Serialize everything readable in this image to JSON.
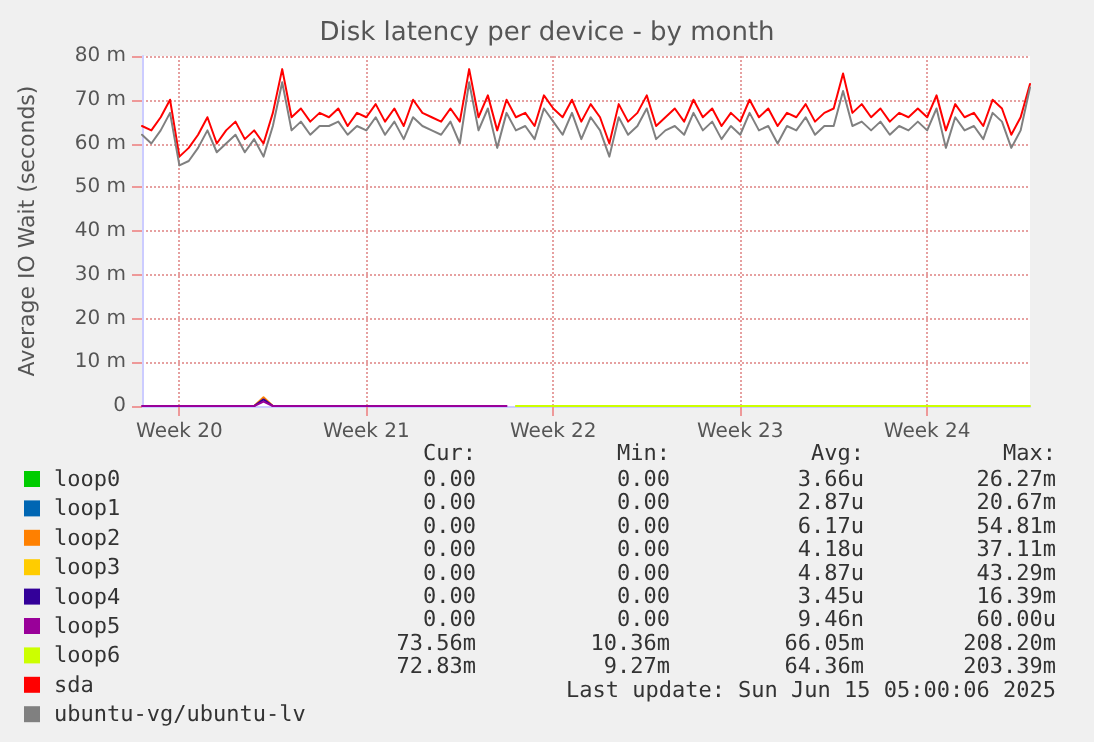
{
  "chart_data": {
    "type": "line",
    "title": "Disk latency per device - by month",
    "ylabel": "Average IO Wait (seconds)",
    "categories": [
      null,
      null,
      null,
      null,
      "Week 20",
      null,
      null,
      null,
      null,
      null,
      null,
      null,
      null,
      null,
      null,
      null,
      null,
      null,
      null,
      null,
      null,
      null,
      null,
      null,
      "Week 21",
      null,
      null,
      null,
      null,
      null,
      null,
      null,
      null,
      null,
      null,
      null,
      null,
      null,
      null,
      null,
      null,
      null,
      null,
      null,
      "Week 22",
      null,
      null,
      null,
      null,
      null,
      null,
      null,
      null,
      null,
      null,
      null,
      null,
      null,
      null,
      null,
      null,
      null,
      null,
      null,
      "Week 23",
      null,
      null,
      null,
      null,
      null,
      null,
      null,
      null,
      null,
      null,
      null,
      null,
      null,
      null,
      null,
      null,
      null,
      null,
      null,
      "Week 24",
      null,
      null,
      null,
      null,
      null,
      null,
      null,
      null,
      null,
      null,
      null
    ],
    "series": [
      {
        "name": "loop0",
        "color": "#00cc00",
        "values": [
          null,
          null,
          null,
          null,
          null,
          null,
          null,
          null,
          null,
          null,
          null,
          null,
          null,
          null,
          null,
          null,
          null,
          null,
          null,
          null,
          null,
          null,
          null,
          null,
          null,
          null,
          null,
          null,
          null,
          null,
          null,
          null,
          null,
          null,
          null,
          null,
          null,
          null,
          null,
          null,
          null,
          null,
          null,
          null,
          null,
          null,
          null,
          null,
          null,
          null,
          null,
          null,
          null,
          null,
          null,
          null,
          null,
          null,
          null,
          null,
          null,
          null,
          null,
          null,
          null,
          null,
          null,
          null,
          null,
          null,
          null,
          null,
          null,
          null,
          null,
          null,
          null,
          null,
          null,
          null,
          null,
          null,
          null,
          null,
          null,
          null,
          null,
          null,
          null,
          null,
          null,
          null,
          null,
          null,
          null,
          null
        ]
      },
      {
        "name": "loop1",
        "color": "#0066b3",
        "values": [
          null,
          null,
          null,
          null,
          null,
          null,
          null,
          null,
          null,
          null,
          null,
          null,
          null,
          null,
          null,
          null,
          null,
          null,
          null,
          null,
          null,
          null,
          null,
          null,
          null,
          null,
          null,
          null,
          null,
          null,
          null,
          null,
          null,
          null,
          null,
          null,
          null,
          null,
          null,
          null,
          null,
          null,
          null,
          null,
          null,
          null,
          null,
          null,
          null,
          null,
          null,
          null,
          null,
          null,
          null,
          null,
          null,
          null,
          null,
          null,
          null,
          null,
          null,
          null,
          null,
          null,
          null,
          null,
          null,
          null,
          null,
          null,
          null,
          null,
          null,
          null,
          null,
          null,
          null,
          null,
          null,
          null,
          null,
          null,
          null,
          null,
          null,
          null,
          null,
          null,
          null,
          null,
          null,
          null,
          null,
          null
        ]
      },
      {
        "name": "loop2",
        "color": "#ff8000",
        "values": [
          null,
          null,
          null,
          null,
          null,
          null,
          null,
          null,
          null,
          null,
          null,
          null,
          0,
          2,
          0,
          null,
          null,
          null,
          null,
          null,
          null,
          null,
          null,
          null,
          null,
          null,
          null,
          null,
          null,
          null,
          null,
          null,
          null,
          null,
          null,
          null,
          null,
          null,
          null,
          null,
          null,
          null,
          null,
          null,
          null,
          null,
          null,
          null,
          null,
          null,
          null,
          null,
          null,
          null,
          null,
          null,
          null,
          null,
          null,
          null,
          null,
          null,
          null,
          null,
          null,
          null,
          null,
          null,
          null,
          null,
          null,
          null,
          null,
          null,
          null,
          null,
          null,
          null,
          null,
          null,
          null,
          null,
          null,
          null,
          null,
          null,
          null,
          null,
          null,
          null,
          null,
          null,
          null,
          null,
          null,
          null
        ]
      },
      {
        "name": "loop3",
        "color": "#ffcc00",
        "values": [
          null,
          null,
          null,
          null,
          null,
          null,
          null,
          null,
          null,
          null,
          null,
          null,
          null,
          null,
          null,
          null,
          null,
          null,
          null,
          null,
          null,
          null,
          null,
          null,
          null,
          null,
          null,
          null,
          null,
          null,
          null,
          null,
          null,
          null,
          null,
          null,
          null,
          null,
          null,
          null,
          null,
          null,
          null,
          null,
          null,
          null,
          null,
          null,
          null,
          null,
          null,
          null,
          null,
          null,
          null,
          null,
          null,
          null,
          null,
          null,
          null,
          null,
          null,
          null,
          null,
          null,
          null,
          null,
          null,
          null,
          null,
          null,
          null,
          null,
          null,
          null,
          null,
          null,
          null,
          null,
          null,
          null,
          null,
          null,
          null,
          null,
          null,
          null,
          null,
          null,
          null,
          null,
          null,
          null,
          null,
          null
        ]
      },
      {
        "name": "loop4",
        "color": "#330099",
        "values": [
          null,
          null,
          null,
          null,
          null,
          null,
          null,
          null,
          null,
          null,
          null,
          null,
          0,
          1.5,
          0,
          null,
          null,
          null,
          null,
          null,
          null,
          null,
          null,
          null,
          null,
          null,
          null,
          null,
          null,
          null,
          null,
          null,
          null,
          null,
          null,
          null,
          null,
          null,
          null,
          null,
          null,
          null,
          null,
          null,
          null,
          null,
          null,
          null,
          null,
          null,
          null,
          null,
          null,
          null,
          null,
          null,
          null,
          null,
          null,
          null,
          null,
          null,
          null,
          null,
          null,
          null,
          null,
          null,
          null,
          null,
          null,
          null,
          null,
          null,
          null,
          null,
          null,
          null,
          null,
          null,
          null,
          null,
          null,
          null,
          null,
          null,
          null,
          null,
          null,
          null,
          null,
          null,
          null,
          null,
          null,
          null
        ]
      },
      {
        "name": "loop5",
        "color": "#990099",
        "values": [
          0,
          0,
          0,
          0,
          0,
          0,
          0,
          0,
          0,
          0,
          0,
          0,
          0,
          1,
          0,
          0,
          0,
          0,
          0,
          0,
          0,
          0,
          0,
          0,
          0,
          0,
          0,
          0,
          0,
          0,
          0,
          0,
          0,
          0,
          0,
          0,
          0,
          0,
          0,
          0,
          null,
          null,
          null,
          null,
          null,
          null,
          null,
          null,
          null,
          null,
          null,
          null,
          null,
          null,
          null,
          null,
          null,
          null,
          null,
          null,
          null,
          null,
          null,
          null,
          null,
          null,
          null,
          null,
          null,
          null,
          null,
          null,
          null,
          null,
          null,
          null,
          null,
          null,
          null,
          null,
          null,
          null,
          null,
          null,
          null,
          null,
          null,
          null,
          null,
          null,
          null,
          null,
          null,
          null,
          null,
          null
        ]
      },
      {
        "name": "loop6",
        "color": "#ccff00",
        "values": [
          null,
          null,
          null,
          null,
          null,
          null,
          null,
          null,
          null,
          null,
          null,
          null,
          null,
          null,
          null,
          null,
          null,
          null,
          null,
          null,
          null,
          null,
          null,
          null,
          null,
          null,
          null,
          null,
          null,
          null,
          null,
          null,
          null,
          null,
          null,
          null,
          null,
          null,
          null,
          null,
          0,
          0,
          0,
          0,
          0,
          0,
          0,
          0,
          0,
          0,
          0,
          0,
          0,
          0,
          0,
          0,
          0,
          0,
          0,
          0,
          0,
          0,
          0,
          0,
          0,
          0,
          0,
          0,
          0,
          0,
          0,
          0,
          0,
          0,
          0,
          0,
          0,
          0,
          0,
          0,
          0,
          0,
          0,
          0,
          0,
          0,
          0,
          0,
          0,
          0,
          0,
          0,
          0,
          0,
          0,
          0
        ]
      },
      {
        "name": "sda",
        "color": "#ff0000",
        "values": [
          64,
          63,
          66,
          70,
          57,
          59,
          62,
          66,
          60,
          63,
          65,
          61,
          63,
          60,
          67,
          77,
          66,
          68,
          65,
          67,
          66,
          68,
          64,
          67,
          66,
          69,
          65,
          68,
          64,
          70,
          67,
          66,
          65,
          68,
          65,
          77,
          66,
          71,
          63,
          70,
          66,
          67,
          64,
          71,
          68,
          66,
          70,
          65,
          69,
          66,
          60,
          69,
          65,
          67,
          71,
          64,
          66,
          68,
          65,
          70,
          66,
          68,
          64,
          67,
          65,
          70,
          66,
          68,
          64,
          67,
          66,
          69,
          65,
          67,
          68,
          76,
          67,
          69,
          66,
          68,
          65,
          67,
          66,
          68,
          66,
          71,
          63,
          69,
          66,
          67,
          64,
          70,
          68,
          62,
          66,
          73.6
        ]
      },
      {
        "name": "ubuntu-vg/ubuntu-lv",
        "color": "#808080",
        "values": [
          62,
          60,
          63,
          67,
          55,
          56,
          59,
          63,
          58,
          60,
          62,
          58,
          61,
          57,
          64,
          74,
          63,
          65,
          62,
          64,
          64,
          65,
          62,
          64,
          63,
          66,
          62,
          65,
          61,
          66,
          64,
          63,
          62,
          65,
          60,
          74,
          63,
          68,
          59,
          67,
          63,
          64,
          61,
          68,
          65,
          62,
          67,
          61,
          66,
          63,
          57,
          66,
          62,
          64,
          68,
          61,
          63,
          64,
          62,
          67,
          63,
          65,
          61,
          64,
          62,
          67,
          63,
          64,
          60,
          64,
          63,
          66,
          62,
          64,
          64,
          72,
          64,
          65,
          63,
          65,
          62,
          64,
          63,
          65,
          63,
          68,
          59,
          66,
          63,
          64,
          61,
          67,
          65,
          59,
          63,
          72.8
        ]
      }
    ],
    "ylim": [
      0,
      80
    ],
    "yticks": [
      {
        "value": 0,
        "label": "0"
      },
      {
        "value": 10,
        "label": "10 m"
      },
      {
        "value": 20,
        "label": "20 m"
      },
      {
        "value": 30,
        "label": "30 m"
      },
      {
        "value": 40,
        "label": "40 m"
      },
      {
        "value": 50,
        "label": "50 m"
      },
      {
        "value": 60,
        "label": "60 m"
      },
      {
        "value": 70,
        "label": "70 m"
      },
      {
        "value": 80,
        "label": "80 m"
      }
    ],
    "grid": true,
    "legend": "bottom left",
    "marker": "none",
    "line_style": "solid",
    "annotations": [
      "Cur:",
      "Min:",
      "Avg:",
      "Max:",
      "0.00",
      "0.00",
      "3.66u",
      "26.27m",
      "0.00",
      "0.00",
      "2.87u",
      "20.67m",
      "0.00",
      "0.00",
      "6.17u",
      "54.81m",
      "0.00",
      "0.00",
      "4.18u",
      "37.11m",
      "0.00",
      "0.00",
      "4.87u",
      "43.29m",
      "0.00",
      "0.00",
      "3.45u",
      "16.39m",
      "0.00",
      "0.00",
      "9.46n",
      "60.00u",
      "73.56m",
      "10.36m",
      "66.05m",
      "208.20m",
      "72.83m",
      "9.27m",
      "64.36m",
      "203.39m",
      "Last update: Sun Jun 15 05:00:06 2025"
    ]
  }
}
